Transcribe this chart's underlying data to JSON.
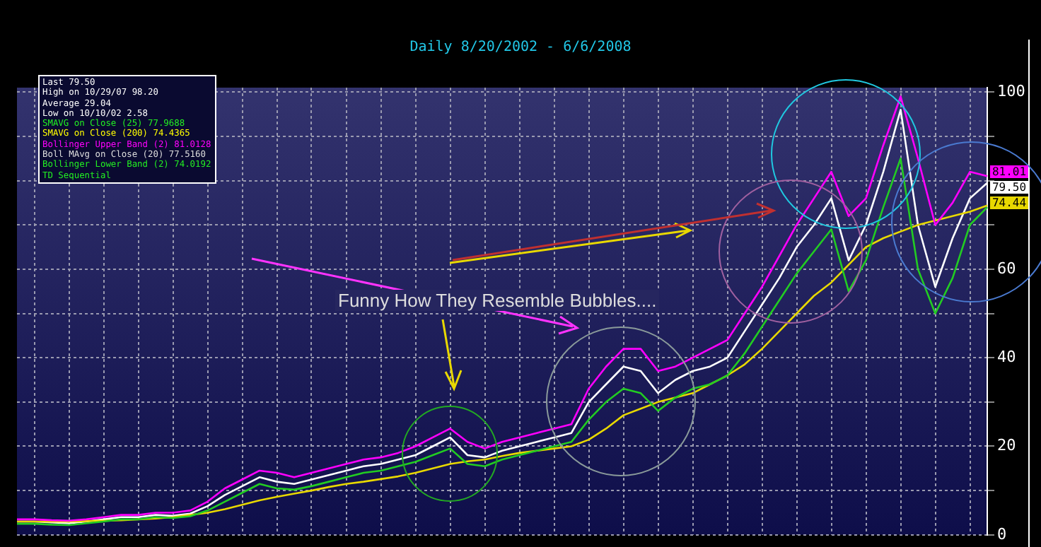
{
  "chart_data": {
    "type": "line",
    "subtitle": "Daily   8/20/2002 - 6/6/2008",
    "annotations": [
      "Last 79.50",
      "High on 10/29/07 98.20",
      "Average 29.04",
      "Low on 10/10/02 2.58",
      "SMAVG on Close (25) 77.9688",
      "SMAVG on Close (200) 74.4365",
      "Bollinger Upper Band (2) 81.0128",
      "Boll MAvg on Close (20) 77.5160",
      "Bollinger Lower Band (2) 74.0192",
      "TD Sequential",
      "Funny How They Resemble Bubbles....",
      "81.01",
      "79.50",
      "74.44"
    ],
    "categories": [
      null,
      null,
      null,
      null,
      null,
      null,
      null,
      null,
      null,
      null,
      null,
      null,
      null,
      null,
      null,
      null,
      null,
      null,
      null,
      null,
      null,
      null,
      null,
      null,
      null,
      null,
      null,
      null,
      null,
      null,
      null,
      null,
      null,
      null,
      null,
      null,
      null,
      null,
      null,
      null,
      null,
      null,
      null,
      null,
      null,
      null,
      null,
      null,
      null,
      null,
      null,
      null,
      null,
      null,
      null,
      null,
      null
    ],
    "series": [
      {
        "color": "#ff00ff",
        "values": [
          3.5,
          3.5,
          3.3,
          3.2,
          3.5,
          4,
          4.5,
          4.5,
          5,
          5,
          5.5,
          7.5,
          10.5,
          12.5,
          14.5,
          14,
          13,
          14,
          15,
          16,
          17,
          17.5,
          18.5,
          20,
          22,
          24,
          21,
          19.5,
          21,
          22,
          23,
          24,
          25,
          33,
          38,
          42,
          42,
          37,
          38,
          40,
          42,
          44,
          50,
          56,
          63,
          70,
          76,
          82,
          72,
          76,
          88,
          99,
          85,
          70,
          75,
          82,
          81
        ]
      },
      {
        "color": "#22cc22",
        "values": [
          2.5,
          2.5,
          2.3,
          2.2,
          2.6,
          3,
          3.5,
          3.5,
          4,
          3.8,
          4.2,
          5.5,
          7.5,
          9.5,
          11.5,
          10.5,
          10.2,
          11,
          12,
          13,
          14,
          14.5,
          15.5,
          16.5,
          18,
          19.5,
          16,
          15.5,
          17,
          18,
          19,
          20,
          21,
          26,
          30,
          33,
          32,
          28,
          31,
          33,
          34,
          36,
          41,
          47,
          53,
          59,
          64,
          69,
          55,
          62,
          74,
          85,
          60,
          50,
          58,
          70,
          74
        ]
      },
      {
        "color": "#e8d800",
        "values": [
          3,
          3,
          3,
          3,
          3.1,
          3.2,
          3.3,
          3.5,
          3.7,
          4,
          4.5,
          5,
          5.8,
          6.8,
          7.8,
          8.6,
          9.3,
          10,
          10.8,
          11.5,
          12,
          12.6,
          13.2,
          14,
          15,
          16,
          16.6,
          17,
          17.8,
          18.5,
          19,
          19.5,
          20,
          21.5,
          24,
          27,
          28.5,
          30,
          31,
          32,
          34,
          36,
          38.5,
          42,
          46,
          50,
          54,
          57,
          61,
          65,
          67,
          68.5,
          70,
          71,
          72,
          73,
          74.4
        ]
      },
      {
        "color": "#ffffff",
        "values": [
          3,
          3,
          2.8,
          2.6,
          3,
          3.5,
          4,
          4,
          4.5,
          4.3,
          4.8,
          6.5,
          9,
          11,
          13,
          12,
          11.5,
          12.5,
          13.5,
          14.5,
          15.5,
          16,
          17,
          18,
          20,
          22,
          18,
          17.5,
          19,
          20,
          21,
          22,
          23,
          30,
          34,
          38,
          37,
          32,
          35,
          37,
          38,
          40,
          46,
          52,
          58,
          65,
          70,
          76,
          62,
          70,
          82,
          96,
          70,
          56,
          67,
          76,
          79.5
        ]
      }
    ],
    "ylim": [
      0,
      101
    ],
    "yticks": [
      0,
      {
        "value": 10,
        "label": null
      },
      20,
      {
        "value": 30,
        "label": null
      },
      40,
      {
        "value": 50,
        "label": null
      },
      60,
      {
        "value": 70,
        "label": null
      },
      {
        "value": 80,
        "label": null
      },
      {
        "value": 90,
        "label": null
      },
      100
    ],
    "grid": true,
    "legend": false,
    "tick_labels": "y",
    "marker": "none",
    "line_style": "solid"
  }
}
